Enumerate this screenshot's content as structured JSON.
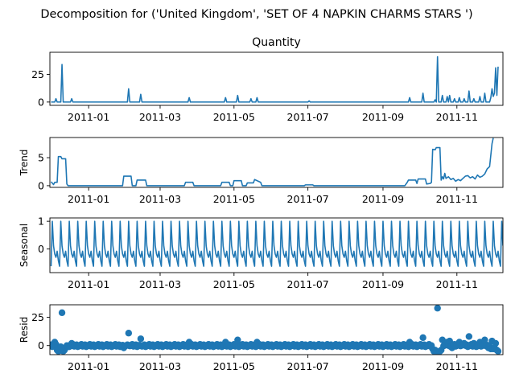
{
  "figure": {
    "suptitle": "Decomposition for ('United Kingdom', 'SET OF 4 NAPKIN CHARMS STARS   ')"
  },
  "chart_data": {
    "type": "line",
    "title": "Decomposition for ('United Kingdom', 'SET OF 4 NAPKIN CHARMS STARS   ')",
    "xlim": [
      "2011-11-30",
      "2011-12-09"
    ],
    "x_tick_labels": [
      "2011-01",
      "2011-03",
      "2011-05",
      "2011-07",
      "2011-09",
      "2011-11"
    ],
    "series_color": "#1f77b4",
    "panels": [
      {
        "title": "Quantity",
        "ylabel": "",
        "type": "line",
        "ylim": [
          -3,
          45
        ],
        "yticks": [
          0,
          25
        ],
        "points": [
          [
            "2010-12-01",
            0
          ],
          [
            "2010-12-04",
            0
          ],
          [
            "2010-12-05",
            3
          ],
          [
            "2010-12-06",
            0
          ],
          [
            "2010-12-09",
            0
          ],
          [
            "2010-12-10",
            34
          ],
          [
            "2010-12-11",
            0
          ],
          [
            "2010-12-17",
            0
          ],
          [
            "2010-12-18",
            3
          ],
          [
            "2010-12-19",
            0
          ],
          [
            "2011-02-02",
            0
          ],
          [
            "2011-02-03",
            12
          ],
          [
            "2011-02-04",
            0
          ],
          [
            "2011-02-12",
            0
          ],
          [
            "2011-02-13",
            7
          ],
          [
            "2011-02-14",
            0
          ],
          [
            "2011-03-24",
            0
          ],
          [
            "2011-03-25",
            4
          ],
          [
            "2011-03-26",
            0
          ],
          [
            "2011-04-23",
            0
          ],
          [
            "2011-04-24",
            4
          ],
          [
            "2011-04-25",
            0
          ],
          [
            "2011-05-03",
            0
          ],
          [
            "2011-05-04",
            6
          ],
          [
            "2011-05-05",
            0
          ],
          [
            "2011-05-14",
            0
          ],
          [
            "2011-05-15",
            3
          ],
          [
            "2011-05-16",
            0
          ],
          [
            "2011-05-19",
            0
          ],
          [
            "2011-05-20",
            4
          ],
          [
            "2011-05-21",
            0
          ],
          [
            "2011-07-01",
            0
          ],
          [
            "2011-07-02",
            1
          ],
          [
            "2011-07-03",
            0
          ],
          [
            "2011-09-22",
            0
          ],
          [
            "2011-09-23",
            4
          ],
          [
            "2011-09-24",
            0
          ],
          [
            "2011-10-03",
            0
          ],
          [
            "2011-10-04",
            8
          ],
          [
            "2011-10-05",
            0
          ],
          [
            "2011-10-13",
            0
          ],
          [
            "2011-10-14",
            2
          ],
          [
            "2011-10-15",
            0
          ],
          [
            "2011-10-16",
            41
          ],
          [
            "2011-10-17",
            0
          ],
          [
            "2011-10-19",
            0
          ],
          [
            "2011-10-20",
            6
          ],
          [
            "2011-10-21",
            0
          ],
          [
            "2011-10-23",
            0
          ],
          [
            "2011-10-24",
            5
          ],
          [
            "2011-10-25",
            0
          ],
          [
            "2011-10-26",
            6
          ],
          [
            "2011-10-27",
            0
          ],
          [
            "2011-10-29",
            0
          ],
          [
            "2011-10-30",
            3
          ],
          [
            "2011-10-31",
            0
          ],
          [
            "2011-11-02",
            0
          ],
          [
            "2011-11-03",
            4
          ],
          [
            "2011-11-04",
            0
          ],
          [
            "2011-11-06",
            0
          ],
          [
            "2011-11-07",
            3
          ],
          [
            "2011-11-08",
            0
          ],
          [
            "2011-11-10",
            0
          ],
          [
            "2011-11-11",
            10
          ],
          [
            "2011-11-12",
            0
          ],
          [
            "2011-11-14",
            0
          ],
          [
            "2011-11-15",
            3
          ],
          [
            "2011-11-16",
            0
          ],
          [
            "2011-11-19",
            0
          ],
          [
            "2011-11-20",
            5
          ],
          [
            "2011-11-21",
            0
          ],
          [
            "2011-11-23",
            0
          ],
          [
            "2011-11-24",
            8
          ],
          [
            "2011-11-25",
            0
          ],
          [
            "2011-11-28",
            0
          ],
          [
            "2011-11-29",
            4
          ],
          [
            "2011-11-30",
            12
          ],
          [
            "2011-12-01",
            5
          ],
          [
            "2011-12-02",
            8
          ],
          [
            "2011-12-03",
            31
          ],
          [
            "2011-12-04",
            6
          ],
          [
            "2011-12-05",
            32
          ]
        ]
      },
      {
        "title": "",
        "ylabel": "Trend",
        "type": "line",
        "ylim": [
          -0.3,
          8.6
        ],
        "yticks": [
          0,
          5
        ],
        "points": [
          [
            "2010-12-01",
            0.7
          ],
          [
            "2010-12-03",
            0.2
          ],
          [
            "2010-12-04",
            0.6
          ],
          [
            "2010-12-06",
            0.6
          ],
          [
            "2010-12-07",
            5.2
          ],
          [
            "2010-12-09",
            5.2
          ],
          [
            "2010-12-10",
            4.8
          ],
          [
            "2010-12-13",
            4.8
          ],
          [
            "2010-12-14",
            0.3
          ],
          [
            "2010-12-15",
            0.0
          ],
          [
            "2011-01-29",
            0.0
          ],
          [
            "2011-01-30",
            1.7
          ],
          [
            "2011-02-05",
            1.7
          ],
          [
            "2011-02-06",
            0.0
          ],
          [
            "2011-02-09",
            0.0
          ],
          [
            "2011-02-10",
            1.0
          ],
          [
            "2011-02-17",
            1.0
          ],
          [
            "2011-02-18",
            0.0
          ],
          [
            "2011-03-21",
            0.0
          ],
          [
            "2011-03-22",
            0.6
          ],
          [
            "2011-03-28",
            0.6
          ],
          [
            "2011-03-29",
            0.0
          ],
          [
            "2011-04-20",
            0.0
          ],
          [
            "2011-04-21",
            0.6
          ],
          [
            "2011-04-27",
            0.6
          ],
          [
            "2011-04-28",
            0.0
          ],
          [
            "2011-04-30",
            0.0
          ],
          [
            "2011-05-01",
            0.9
          ],
          [
            "2011-05-07",
            0.9
          ],
          [
            "2011-05-08",
            0.0
          ],
          [
            "2011-05-11",
            0.0
          ],
          [
            "2011-05-12",
            0.5
          ],
          [
            "2011-05-17",
            0.5
          ],
          [
            "2011-05-18",
            1.1
          ],
          [
            "2011-05-23",
            0.6
          ],
          [
            "2011-05-24",
            0.0
          ],
          [
            "2011-06-28",
            0.0
          ],
          [
            "2011-06-29",
            0.15
          ],
          [
            "2011-07-05",
            0.15
          ],
          [
            "2011-07-06",
            0.0
          ],
          [
            "2011-09-19",
            0.0
          ],
          [
            "2011-09-21",
            0.6
          ],
          [
            "2011-09-22",
            1.0
          ],
          [
            "2011-09-28",
            1.0
          ],
          [
            "2011-09-29",
            0.4
          ],
          [
            "2011-09-30",
            1.2
          ],
          [
            "2011-10-06",
            1.2
          ],
          [
            "2011-10-07",
            0.3
          ],
          [
            "2011-10-10",
            0.4
          ],
          [
            "2011-10-11",
            0.6
          ],
          [
            "2011-10-12",
            6.5
          ],
          [
            "2011-10-14",
            6.4
          ],
          [
            "2011-10-15",
            6.8
          ],
          [
            "2011-10-18",
            6.8
          ],
          [
            "2011-10-19",
            1.0
          ],
          [
            "2011-10-20",
            1.6
          ],
          [
            "2011-10-21",
            1.2
          ],
          [
            "2011-10-22",
            2.2
          ],
          [
            "2011-10-23",
            1.3
          ],
          [
            "2011-10-25",
            1.6
          ],
          [
            "2011-10-27",
            1.1
          ],
          [
            "2011-10-29",
            1.3
          ],
          [
            "2011-10-31",
            0.8
          ],
          [
            "2011-11-02",
            1.1
          ],
          [
            "2011-11-04",
            0.9
          ],
          [
            "2011-11-06",
            1.3
          ],
          [
            "2011-11-08",
            1.7
          ],
          [
            "2011-11-10",
            1.8
          ],
          [
            "2011-11-12",
            1.4
          ],
          [
            "2011-11-14",
            1.6
          ],
          [
            "2011-11-16",
            1.2
          ],
          [
            "2011-11-18",
            1.9
          ],
          [
            "2011-11-20",
            1.5
          ],
          [
            "2011-11-22",
            1.7
          ],
          [
            "2011-11-24",
            2.1
          ],
          [
            "2011-11-26",
            3.0
          ],
          [
            "2011-11-28",
            3.4
          ],
          [
            "2011-11-30",
            7.5
          ],
          [
            "2011-12-01",
            8.5
          ]
        ]
      },
      {
        "title": "",
        "ylabel": "Seasonal",
        "type": "line",
        "ylim": [
          -0.85,
          1.12
        ],
        "yticks": [
          0,
          1
        ],
        "period_days": 7,
        "weekly_pattern": [
          -0.62,
          1.0,
          0.12,
          -0.18,
          -0.3,
          -0.08,
          -0.42
        ]
      },
      {
        "title": "",
        "ylabel": "Resid",
        "type": "scatter",
        "ylim": [
          -8,
          36
        ],
        "yticks": [
          0,
          25
        ],
        "outliers": [
          [
            "2010-12-02",
            -1
          ],
          [
            "2010-12-04",
            3
          ],
          [
            "2010-12-06",
            -4
          ],
          [
            "2010-12-07",
            -5
          ],
          [
            "2010-12-08",
            -3
          ],
          [
            "2010-12-10",
            29
          ],
          [
            "2010-12-11",
            -5
          ],
          [
            "2010-12-12",
            -4
          ],
          [
            "2010-12-13",
            -2
          ],
          [
            "2010-12-15",
            -1
          ],
          [
            "2010-12-18",
            2
          ],
          [
            "2011-01-30",
            -2
          ],
          [
            "2011-02-03",
            11
          ],
          [
            "2011-02-13",
            6
          ],
          [
            "2011-03-25",
            3
          ],
          [
            "2011-04-24",
            3
          ],
          [
            "2011-05-04",
            5
          ],
          [
            "2011-05-20",
            3
          ],
          [
            "2011-09-23",
            3
          ],
          [
            "2011-10-04",
            7
          ],
          [
            "2011-10-12",
            -3
          ],
          [
            "2011-10-13",
            -5
          ],
          [
            "2011-10-14",
            -4
          ],
          [
            "2011-10-15",
            -5
          ],
          [
            "2011-10-16",
            33
          ],
          [
            "2011-10-17",
            -6
          ],
          [
            "2011-10-18",
            -5
          ],
          [
            "2011-10-19",
            -4
          ],
          [
            "2011-10-20",
            5
          ],
          [
            "2011-10-24",
            3
          ],
          [
            "2011-10-26",
            4
          ],
          [
            "2011-10-28",
            -2
          ],
          [
            "2011-11-03",
            3
          ],
          [
            "2011-11-07",
            2
          ],
          [
            "2011-11-11",
            8
          ],
          [
            "2011-11-15",
            2
          ],
          [
            "2011-11-20",
            3
          ],
          [
            "2011-11-24",
            5
          ],
          [
            "2011-11-27",
            -2
          ],
          [
            "2011-11-29",
            -3
          ],
          [
            "2011-11-30",
            4
          ],
          [
            "2011-12-01",
            -3
          ],
          [
            "2011-12-02",
            -2
          ],
          [
            "2011-12-03",
            2
          ],
          [
            "2011-12-04",
            -4
          ],
          [
            "2011-12-05",
            -5
          ]
        ],
        "baseline_note_values": [
          0
        ]
      }
    ]
  }
}
